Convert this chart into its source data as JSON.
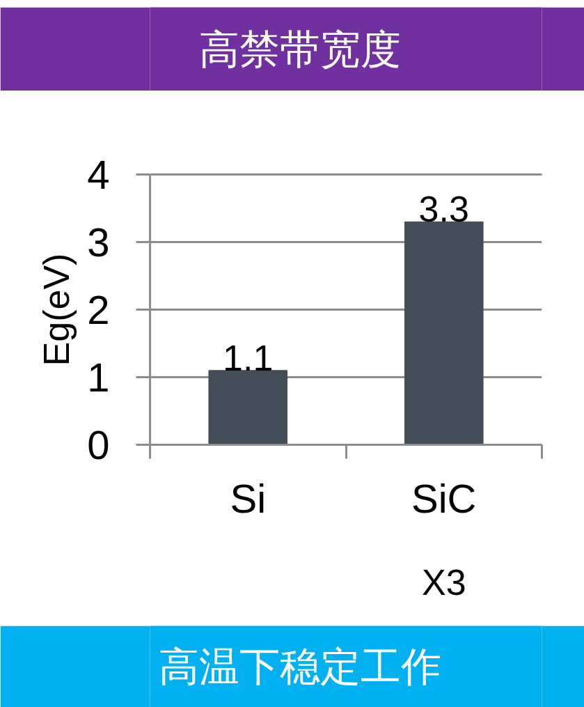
{
  "chart_data": {
    "type": "bar",
    "title": "高禁带宽度",
    "ylabel": "Eg(eV)",
    "categories": [
      "Si",
      "SiC"
    ],
    "values": [
      1.1,
      3.3
    ],
    "color": "#434d58",
    "ylim": [
      0,
      4
    ],
    "yticks": [
      0,
      1,
      2,
      3,
      4
    ],
    "grid": "y",
    "data_labels": true,
    "annotations": [
      "X3",
      "高温下稳定工作"
    ]
  }
}
